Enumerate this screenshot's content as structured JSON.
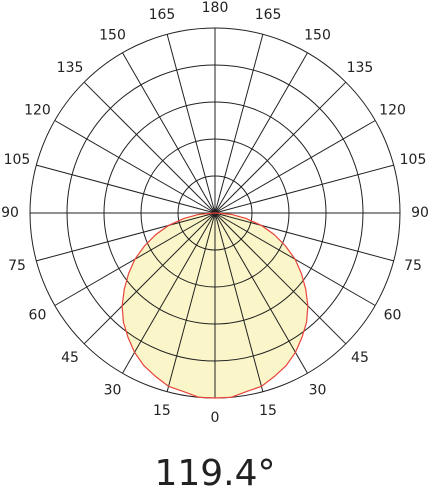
{
  "chart_data": {
    "type": "polar",
    "title": "119.4°",
    "angle_ticks": [
      0,
      15,
      30,
      45,
      60,
      75,
      90,
      105,
      120,
      135,
      150,
      165,
      180
    ],
    "rlim": [
      0,
      100
    ],
    "rings": [
      20,
      40,
      60,
      80,
      100
    ],
    "angles": [
      -90,
      -85,
      -80,
      -75,
      -70,
      -65,
      -60,
      -55,
      -50,
      -45,
      -40,
      -35,
      -30,
      -25,
      -20,
      -15,
      -10,
      -5,
      0,
      5,
      10,
      15,
      20,
      25,
      30,
      35,
      40,
      45,
      50,
      55,
      60,
      65,
      70,
      75,
      80,
      85,
      90
    ],
    "values": [
      0,
      9,
      17,
      26,
      34,
      42,
      50,
      57,
      64,
      71,
      77,
      82,
      87,
      91,
      94,
      97,
      98,
      100,
      100,
      100,
      98,
      97,
      94,
      91,
      87,
      82,
      77,
      71,
      64,
      57,
      50,
      42,
      34,
      26,
      17,
      9,
      0
    ],
    "fill_color": "#f6ee9c",
    "line_color": "#e8443a"
  }
}
